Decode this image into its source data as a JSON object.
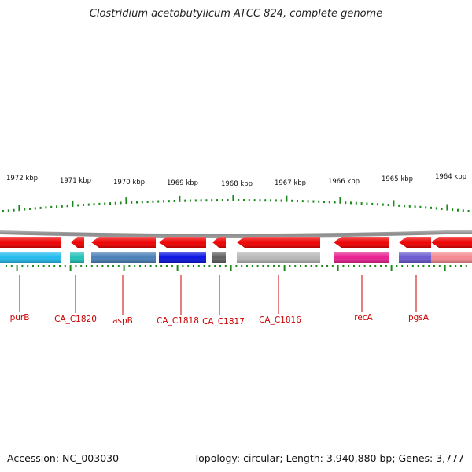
{
  "title": "Clostridium acetobutylicum ATCC 824, complete genome",
  "footer": {
    "accession": "Accession: NC_003030",
    "stats": "Topology: circular; Length: 3,940,880 bp; Genes: 3,777"
  },
  "colors": {
    "backbone": "#8c8c8c",
    "tick": "#1a8a1a",
    "label": "#cc0000",
    "forward_strand": "#ee0000"
  },
  "scale_labels": [
    "1972 kbp",
    "1971 kbp",
    "1970 kbp",
    "1969 kbp",
    "1968 kbp",
    "1967 kbp",
    "1966 kbp",
    "1965 kbp",
    "1964 kbp"
  ],
  "genes": [
    {
      "name": "purB",
      "color": "#22bbee"
    },
    {
      "name": "CA_C1820",
      "color": "#22c2b8"
    },
    {
      "name": "aspB",
      "color": "#4a80b8"
    },
    {
      "name": "CA_C1818",
      "color": "#0a14e0"
    },
    {
      "name": "CA_C1817",
      "color": "#606060"
    },
    {
      "name": "CA_C1816",
      "color": "#b8b8b8"
    },
    {
      "name": "recA",
      "color": "#e82090"
    },
    {
      "name": "pgsA",
      "color": "#6a5ad0"
    },
    {
      "name": "",
      "color": "#f48a90"
    }
  ]
}
